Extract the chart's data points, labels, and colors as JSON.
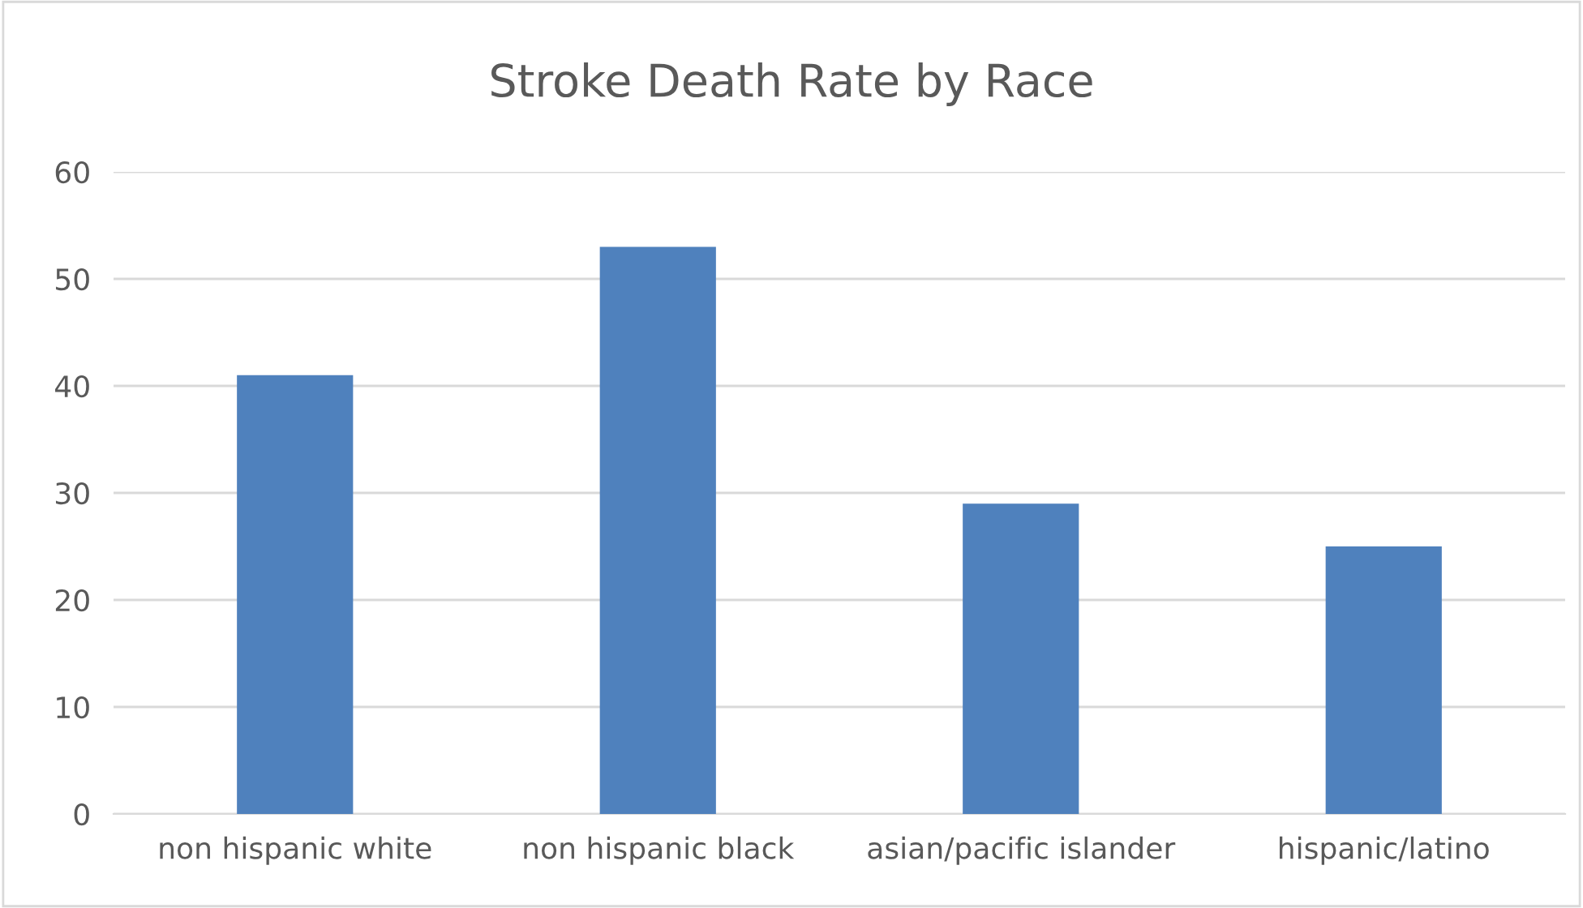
{
  "chart_data": {
    "type": "bar",
    "title": "Stroke Death Rate by Race",
    "categories": [
      "non hispanic white",
      "non hispanic black",
      "asian/pacific islander",
      "hispanic/latino"
    ],
    "values": [
      41,
      53,
      29,
      25
    ],
    "color": "#4f81bd",
    "ylim": [
      0,
      60
    ],
    "yticks": [
      0,
      10,
      20,
      30,
      40,
      50,
      60
    ],
    "grid": "y"
  }
}
